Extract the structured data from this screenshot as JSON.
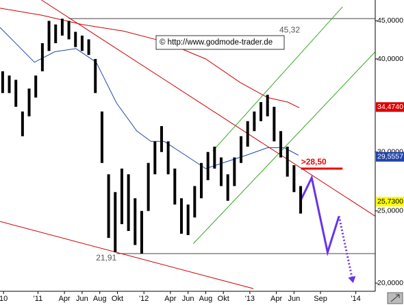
{
  "chart_data": {
    "type": "ohlc",
    "log_scale": true,
    "xlim": [
      -4.3,
      38.2
    ],
    "ylim": [
      19.5,
      48.0
    ],
    "xticks": [
      {
        "value": -3.9,
        "label": "10"
      },
      {
        "value": 0,
        "label": "'11"
      },
      {
        "value": 3,
        "label": "Apr"
      },
      {
        "value": 5,
        "label": "Jun"
      },
      {
        "value": 7,
        "label": "Aug"
      },
      {
        "value": 9,
        "label": "Okt"
      },
      {
        "value": 12,
        "label": "'12"
      },
      {
        "value": 15,
        "label": "Apr"
      },
      {
        "value": 17,
        "label": "Jun"
      },
      {
        "value": 19,
        "label": "Aug"
      },
      {
        "value": 21,
        "label": "Okt"
      },
      {
        "value": 24,
        "label": "'13"
      },
      {
        "value": 27,
        "label": "Apr"
      },
      {
        "value": 29,
        "label": "Jun"
      },
      {
        "value": 32,
        "label": "Sep"
      },
      {
        "value": 36,
        "label": "'14"
      }
    ],
    "yticks": [
      {
        "value": 20,
        "label": "20,0000"
      },
      {
        "value": 25,
        "label": "25,0000"
      },
      {
        "value": 30,
        "label": "30,0000"
      },
      {
        "value": 40,
        "label": "40,0000"
      },
      {
        "value": 45,
        "label": "45,0000"
      }
    ],
    "color": "#000000",
    "x": [
      -4,
      -3.25,
      -2.5,
      -1.75,
      -1,
      -0.25,
      0.5,
      1.25,
      2,
      2.75,
      3.5,
      4.25,
      5,
      5.75,
      6.5,
      7.25,
      8,
      8.75,
      9.5,
      10.25,
      11,
      11.75,
      12.5,
      13.25,
      14,
      14.75,
      15.5,
      16.25,
      17,
      17.75,
      18.5,
      19.25,
      20,
      20.75,
      21.5,
      22.25,
      23,
      23.75,
      24.5,
      25.25,
      26,
      26.75,
      27.5,
      28.25,
      29,
      29.75
    ],
    "high": [
      38.5,
      38,
      37.5,
      34,
      36.5,
      38,
      42,
      45,
      44.5,
      45.3,
      45,
      43.5,
      43,
      42.5,
      40,
      34,
      28,
      26.5,
      28.5,
      28,
      26,
      25,
      29,
      31,
      32.5,
      31,
      28.5,
      26,
      25.5,
      27,
      29,
      30,
      30.5,
      29.5,
      28,
      29.5,
      31.5,
      33,
      34,
      35,
      35.8,
      34.5,
      32,
      30.5,
      28.8,
      27
    ],
    "low": [
      36,
      36,
      34.5,
      31.5,
      33.5,
      35.5,
      38.5,
      41,
      42,
      43,
      42.5,
      41.5,
      41,
      40.5,
      36,
      29,
      23,
      22,
      24,
      23.5,
      22.5,
      21.91,
      25,
      28,
      30,
      28,
      25.5,
      23.3,
      23.2,
      24.5,
      26,
      27.5,
      28.5,
      27,
      25.8,
      27,
      29,
      30.5,
      32,
      33,
      33.5,
      31,
      29.5,
      27.8,
      26.5,
      24.8
    ],
    "lines": [
      {
        "color": "#cc0000",
        "x": [
          -4.3,
          0.4,
          5.0,
          9.7,
          14.3,
          19.0,
          22.9,
          26.0,
          28.3,
          29.6
        ],
        "values": [
          46.8,
          45.8,
          44.5,
          43.6,
          42.2,
          40.0,
          37.2,
          35.5,
          35.0,
          34.4
        ]
      },
      {
        "color": "#2244aa",
        "x": [
          -4.3,
          -2.7,
          -0.4,
          1.9,
          4.3,
          6.6,
          8.9,
          11.2,
          12.8,
          14.3,
          16.7,
          19.0,
          21.3,
          23.6,
          26.0,
          27.9,
          29.5
        ],
        "values": [
          44.1,
          42.2,
          39.6,
          40.9,
          41.3,
          39.6,
          34.9,
          32.0,
          31.0,
          31.0,
          29.7,
          28.5,
          29.1,
          29.7,
          30.4,
          30.4,
          29.7
        ]
      },
      {
        "color": "#cc0000",
        "x": [
          0.4,
          38.2
        ],
        "values": [
          48.0,
          24.6
        ]
      },
      {
        "color": "#cc0000",
        "x": [
          -4.3,
          24.4
        ],
        "values": [
          24.2,
          19.66
        ]
      },
      {
        "color": "#33aa22",
        "x": [
          19.8,
          34.5
        ],
        "values": [
          30.1,
          47.0
        ]
      },
      {
        "color": "#33aa22",
        "x": [
          17.6,
          38.2
        ],
        "values": [
          22.6,
          40.9
        ]
      },
      {
        "color": "#6633ee",
        "width": 3,
        "x": [
          29.8,
          31.0,
          32.8,
          34.1
        ],
        "values": [
          25.9,
          27.7,
          22.0,
          24.6
        ]
      },
      {
        "color": "#6633ee",
        "width": 3,
        "dotted": true,
        "arrow": true,
        "x": [
          34.1,
          35.7
        ],
        "values": [
          24.6,
          20.0
        ]
      }
    ],
    "levels": [
      {
        "value": 45.32,
        "label": "45,32",
        "x": [
          3.5,
          38.2
        ],
        "color": "#555555"
      },
      {
        "value": 21.91,
        "label": "21,91",
        "x": [
          8.9,
          38.2
        ],
        "color": "#555555"
      },
      {
        "value": 28.5,
        "label": ">28,50",
        "x": [
          29.8,
          34.5
        ],
        "color": "#ee0000"
      }
    ],
    "price_labels": [
      {
        "value": 34.474,
        "label": "34,4740",
        "color": "#dd0000"
      },
      {
        "value": 29.5557,
        "label": "29,5557",
        "color": "#2244aa"
      },
      {
        "value": 25.73,
        "label": "25,7300",
        "color": "#ffff00"
      }
    ],
    "watermark": "© http://www.godmode-trader.de"
  }
}
